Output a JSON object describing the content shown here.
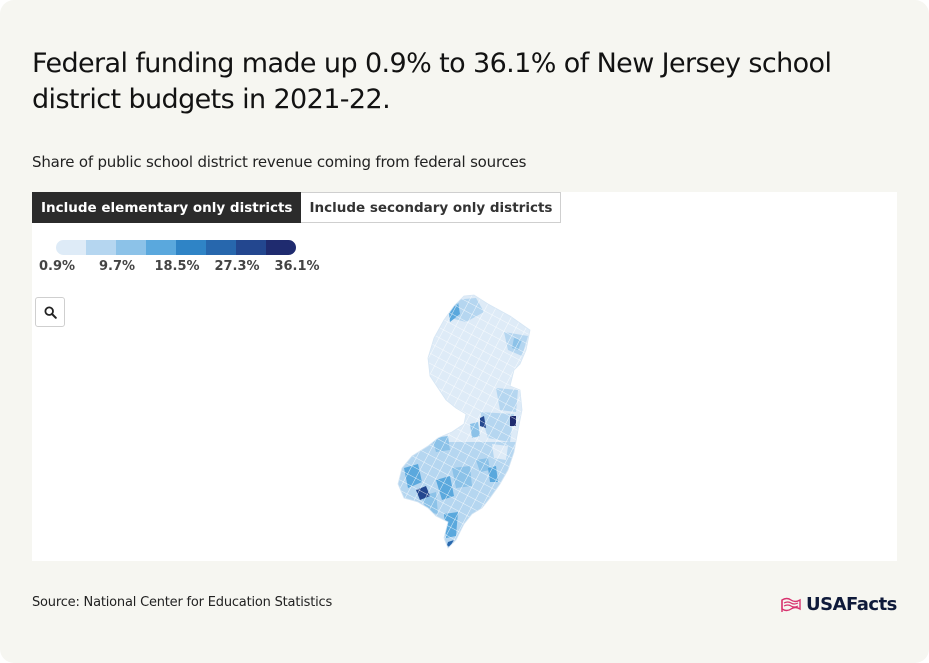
{
  "title": "Federal funding made up 0.9% to 36.1% of New Jersey school district budgets in 2021-22.",
  "subtitle": "Share of public school district revenue coming from federal sources",
  "tabs": [
    {
      "label": "Include elementary only districts",
      "active": true
    },
    {
      "label": "Include secondary only districts",
      "active": false
    }
  ],
  "legend": {
    "colors": [
      "#deebf7",
      "#b5d6f0",
      "#8cc2e8",
      "#5aa8dd",
      "#2f84c6",
      "#2767ad",
      "#23478f",
      "#1f2b6f"
    ],
    "labels": [
      "0.9%",
      "9.7%",
      "18.5%",
      "27.3%",
      "36.1%"
    ]
  },
  "zoom": {
    "icon": "search-icon"
  },
  "source": "Source: National Center for Education Statistics",
  "logo": {
    "text": "USAFacts",
    "icon": "usa-flag-icon",
    "color": "#d8336f"
  }
}
